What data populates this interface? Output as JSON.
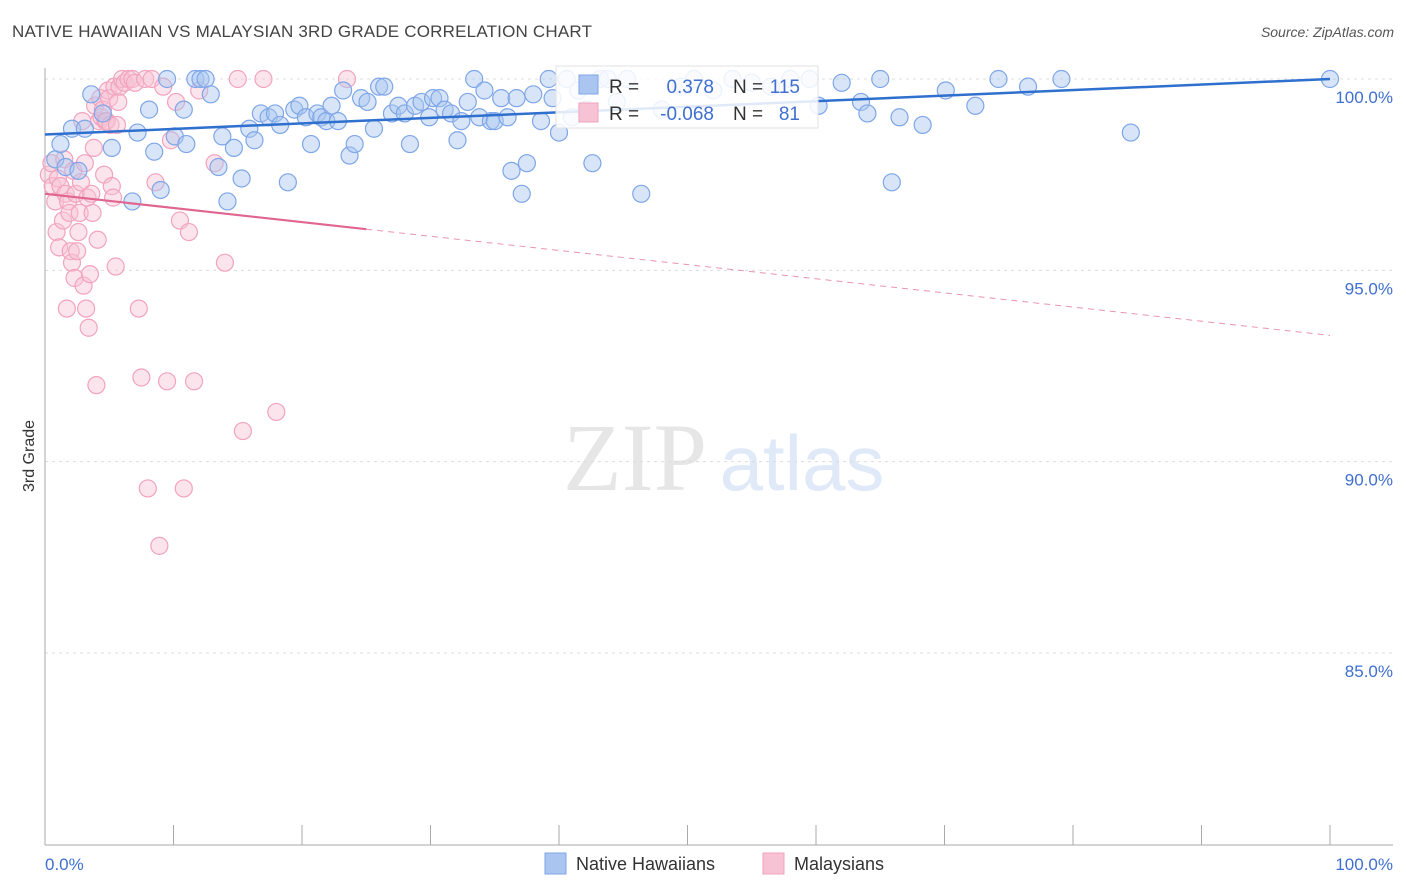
{
  "title": "NATIVE HAWAIIAN VS MALAYSIAN 3RD GRADE CORRELATION CHART",
  "source": "Source: ZipAtlas.com",
  "watermark": {
    "zip": "ZIP",
    "atlas": "atlas"
  },
  "colors": {
    "blue": "#7ea6e8",
    "blue_line": "#2f6fce",
    "pink": "#f2a3bd",
    "pink_line": "#e0668f",
    "tick_text": "#3f6fcf",
    "grid": "#dcdcdc"
  },
  "legend_stats": [
    {
      "series": "Native Hawaiians",
      "r_label": "R =",
      "r_value": "0.378",
      "n_label": "N =",
      "n_value": "115"
    },
    {
      "series": "Malaysians",
      "r_label": "R =",
      "r_value": "-0.068",
      "n_label": "N =",
      "n_value": "81"
    }
  ],
  "chart_data": {
    "type": "scatter",
    "title": "NATIVE HAWAIIAN VS MALAYSIAN 3RD GRADE CORRELATION CHART",
    "xlabel": "",
    "ylabel": "3rd Grade",
    "xlim": [
      0,
      100
    ],
    "ylim": [
      80,
      100.8
    ],
    "x_tick_labels": [
      "0.0%",
      "100.0%"
    ],
    "y_ticks": [
      {
        "value": 100,
        "label": "100.0%"
      },
      {
        "value": 95,
        "label": "95.0%"
      },
      {
        "value": 90,
        "label": "90.0%"
      },
      {
        "value": 85,
        "label": "85.0%"
      }
    ],
    "grid": true,
    "legend_position": "bottom",
    "series": [
      {
        "name": "Native Hawaiians",
        "color": "#7ea6e8",
        "r": 0.378,
        "n": 115,
        "trend": {
          "x": [
            0,
            100
          ],
          "y": [
            98.55,
            100.0
          ],
          "dashed_from": null
        },
        "points": [
          [
            0.8,
            97.9
          ],
          [
            1.2,
            98.3
          ],
          [
            1.6,
            97.7
          ],
          [
            2.1,
            98.7
          ],
          [
            2.6,
            97.6
          ],
          [
            3.1,
            98.7
          ],
          [
            3.6,
            99.6
          ],
          [
            4.5,
            99.1
          ],
          [
            5.2,
            98.2
          ],
          [
            6.8,
            96.8
          ],
          [
            7.2,
            98.6
          ],
          [
            8.1,
            99.2
          ],
          [
            8.5,
            98.1
          ],
          [
            9.0,
            97.1
          ],
          [
            9.5,
            100.0
          ],
          [
            10.1,
            98.5
          ],
          [
            10.8,
            99.2
          ],
          [
            11.0,
            98.3
          ],
          [
            11.7,
            100.0
          ],
          [
            12.1,
            100.0
          ],
          [
            12.5,
            100.0
          ],
          [
            12.9,
            99.6
          ],
          [
            13.5,
            97.7
          ],
          [
            13.8,
            98.5
          ],
          [
            14.2,
            96.8
          ],
          [
            14.7,
            98.2
          ],
          [
            15.3,
            97.4
          ],
          [
            15.9,
            98.7
          ],
          [
            16.3,
            98.4
          ],
          [
            16.8,
            99.1
          ],
          [
            17.4,
            99.0
          ],
          [
            17.9,
            99.1
          ],
          [
            18.3,
            98.8
          ],
          [
            18.9,
            97.3
          ],
          [
            19.4,
            99.2
          ],
          [
            19.8,
            99.3
          ],
          [
            20.3,
            99.0
          ],
          [
            20.7,
            98.3
          ],
          [
            21.2,
            99.1
          ],
          [
            21.5,
            99.0
          ],
          [
            21.9,
            98.9
          ],
          [
            22.3,
            99.3
          ],
          [
            22.8,
            98.9
          ],
          [
            23.2,
            99.7
          ],
          [
            23.7,
            98.0
          ],
          [
            24.1,
            98.3
          ],
          [
            24.6,
            99.5
          ],
          [
            25.1,
            99.4
          ],
          [
            25.6,
            98.7
          ],
          [
            26.0,
            99.8
          ],
          [
            26.4,
            99.8
          ],
          [
            27.0,
            99.1
          ],
          [
            27.5,
            99.3
          ],
          [
            28.0,
            99.1
          ],
          [
            28.4,
            98.3
          ],
          [
            28.8,
            99.3
          ],
          [
            29.3,
            99.4
          ],
          [
            29.9,
            99.0
          ],
          [
            30.2,
            99.5
          ],
          [
            30.7,
            99.5
          ],
          [
            31.1,
            99.2
          ],
          [
            31.6,
            99.1
          ],
          [
            32.1,
            98.4
          ],
          [
            32.4,
            98.9
          ],
          [
            32.9,
            99.4
          ],
          [
            33.4,
            100.0
          ],
          [
            33.8,
            99.0
          ],
          [
            34.2,
            99.7
          ],
          [
            34.7,
            98.9
          ],
          [
            35.0,
            98.9
          ],
          [
            35.5,
            99.5
          ],
          [
            36.0,
            99.0
          ],
          [
            36.3,
            97.6
          ],
          [
            36.7,
            99.5
          ],
          [
            37.1,
            97.0
          ],
          [
            37.5,
            97.8
          ],
          [
            38.0,
            99.6
          ],
          [
            38.6,
            98.9
          ],
          [
            39.2,
            100.0
          ],
          [
            39.5,
            99.5
          ],
          [
            40.0,
            98.6
          ],
          [
            40.6,
            100.0
          ],
          [
            41.0,
            99.0
          ],
          [
            41.5,
            99.7
          ],
          [
            42.1,
            99.2
          ],
          [
            42.6,
            97.8
          ],
          [
            43.2,
            100.0
          ],
          [
            43.8,
            100.0
          ],
          [
            44.5,
            99.4
          ],
          [
            45.3,
            100.0
          ],
          [
            46.4,
            97.0
          ],
          [
            48.0,
            99.2
          ],
          [
            49.5,
            99.8
          ],
          [
            50.5,
            100.0
          ],
          [
            52.0,
            99.7
          ],
          [
            53.5,
            100.0
          ],
          [
            55.0,
            99.9
          ],
          [
            56.5,
            99.8
          ],
          [
            58.0,
            100.0
          ],
          [
            59.5,
            100.0
          ],
          [
            60.2,
            99.3
          ],
          [
            62.0,
            99.9
          ],
          [
            63.5,
            99.4
          ],
          [
            64.0,
            99.1
          ],
          [
            65.0,
            100.0
          ],
          [
            65.9,
            97.3
          ],
          [
            66.5,
            99.0
          ],
          [
            68.3,
            98.8
          ],
          [
            70.1,
            99.7
          ],
          [
            72.4,
            99.3
          ],
          [
            74.2,
            100.0
          ],
          [
            76.5,
            99.8
          ],
          [
            79.1,
            100.0
          ],
          [
            84.5,
            98.6
          ],
          [
            100.0,
            100.0
          ]
        ]
      },
      {
        "name": "Malaysians",
        "color": "#f2a3bd",
        "r": -0.068,
        "n": 81,
        "trend": {
          "x": [
            0,
            100
          ],
          "y": [
            97.0,
            93.3
          ],
          "solid_until": 25.0
        },
        "points": [
          [
            0.3,
            97.5
          ],
          [
            0.5,
            97.8
          ],
          [
            0.6,
            97.2
          ],
          [
            0.8,
            96.8
          ],
          [
            0.9,
            96.0
          ],
          [
            1.0,
            97.4
          ],
          [
            1.1,
            95.6
          ],
          [
            1.2,
            97.2
          ],
          [
            1.4,
            96.3
          ],
          [
            1.5,
            97.9
          ],
          [
            1.6,
            97.0
          ],
          [
            1.7,
            94.0
          ],
          [
            1.8,
            96.8
          ],
          [
            1.9,
            96.5
          ],
          [
            2.0,
            95.5
          ],
          [
            2.1,
            95.2
          ],
          [
            2.2,
            97.6
          ],
          [
            2.3,
            94.8
          ],
          [
            2.4,
            97.0
          ],
          [
            2.5,
            95.5
          ],
          [
            2.6,
            96.0
          ],
          [
            2.7,
            96.5
          ],
          [
            2.8,
            97.3
          ],
          [
            2.9,
            98.9
          ],
          [
            3.0,
            94.6
          ],
          [
            3.1,
            97.8
          ],
          [
            3.2,
            94.0
          ],
          [
            3.3,
            96.9
          ],
          [
            3.4,
            93.5
          ],
          [
            3.5,
            94.9
          ],
          [
            3.6,
            97.0
          ],
          [
            3.7,
            96.5
          ],
          [
            3.8,
            98.2
          ],
          [
            3.9,
            99.3
          ],
          [
            4.0,
            92.0
          ],
          [
            4.1,
            95.8
          ],
          [
            4.2,
            98.9
          ],
          [
            4.3,
            99.5
          ],
          [
            4.4,
            99.0
          ],
          [
            4.5,
            99.2
          ],
          [
            4.6,
            97.5
          ],
          [
            4.7,
            98.9
          ],
          [
            4.8,
            98.9
          ],
          [
            4.9,
            99.7
          ],
          [
            5.0,
            99.5
          ],
          [
            5.1,
            98.8
          ],
          [
            5.2,
            97.2
          ],
          [
            5.3,
            96.9
          ],
          [
            5.4,
            99.8
          ],
          [
            5.5,
            95.1
          ],
          [
            5.6,
            98.8
          ],
          [
            5.7,
            99.4
          ],
          [
            5.8,
            99.8
          ],
          [
            6.0,
            100.0
          ],
          [
            6.2,
            99.9
          ],
          [
            6.5,
            100.0
          ],
          [
            6.8,
            100.0
          ],
          [
            7.0,
            99.9
          ],
          [
            7.3,
            94.0
          ],
          [
            7.5,
            92.2
          ],
          [
            7.8,
            100.0
          ],
          [
            8.0,
            89.3
          ],
          [
            8.3,
            100.0
          ],
          [
            8.6,
            97.3
          ],
          [
            8.9,
            87.8
          ],
          [
            9.2,
            99.8
          ],
          [
            9.5,
            92.1
          ],
          [
            9.8,
            98.4
          ],
          [
            10.2,
            99.4
          ],
          [
            10.5,
            96.3
          ],
          [
            10.8,
            89.3
          ],
          [
            11.2,
            96.0
          ],
          [
            11.6,
            92.1
          ],
          [
            12.0,
            99.7
          ],
          [
            13.2,
            97.8
          ],
          [
            14.0,
            95.2
          ],
          [
            15.0,
            100.0
          ],
          [
            15.4,
            90.8
          ],
          [
            17.0,
            100.0
          ],
          [
            18.0,
            91.3
          ],
          [
            23.5,
            100.0
          ]
        ]
      }
    ]
  }
}
